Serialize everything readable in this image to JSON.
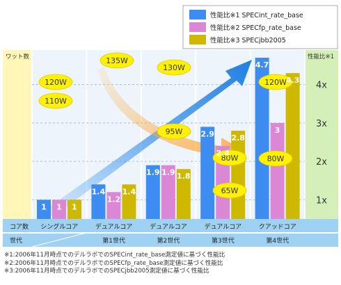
{
  "legend": [
    {
      "label": "性能比※1 SPECint_rate_base",
      "color": "#3d8cf2"
    },
    {
      "label": "性能比※2 SPECfp_rate_base",
      "color": "#dc86d6"
    },
    {
      "label": "性能比※3 SPECjbb2005",
      "color": "#cfb800"
    }
  ],
  "left_axis_title": "ワット数",
  "right_axis_title": "性能比※1",
  "row_labels": {
    "cores": "コア数",
    "generation": "世代"
  },
  "chart_data": {
    "type": "bar",
    "categories": [
      "シングルコア",
      "デュアルコア",
      "デュアルコア",
      "デュアルコア",
      "クアッドコア"
    ],
    "generations": [
      "",
      "第1世代",
      "第2世代",
      "第3世代",
      "第4世代"
    ],
    "series": [
      {
        "name": "SPECint_rate_base",
        "values": [
          1,
          1.4,
          1.9,
          2.9,
          4.7
        ],
        "labels": [
          "1",
          "1.4",
          "1.9",
          "2.9",
          "4.7"
        ]
      },
      {
        "name": "SPECfp_rate_base",
        "values": [
          1,
          1.2,
          1.9,
          2.4,
          3
        ],
        "labels": [
          "1",
          "1.2",
          "1.9",
          "2.4",
          "3"
        ]
      },
      {
        "name": "SPECjbb2005",
        "values": [
          1,
          1.4,
          1.8,
          2.8,
          4.3
        ],
        "labels": [
          "1",
          "1.4",
          "1.8",
          "2.8",
          "4.3"
        ]
      }
    ],
    "y_ticks": [
      "1x",
      "2x",
      "3x",
      "4x"
    ],
    "ylim": [
      0.5,
      4.9
    ],
    "wattage": [
      {
        "category_index": 0,
        "values": [
          "120W",
          "110W"
        ]
      },
      {
        "category_index": 1,
        "values": [
          "135W"
        ]
      },
      {
        "category_index": 2,
        "values": [
          "130W"
        ]
      },
      {
        "category_index": 2,
        "values": [
          "95W"
        ]
      },
      {
        "category_index": 3,
        "values": [
          "80W",
          "65W"
        ]
      },
      {
        "category_index": 4,
        "values": [
          "120W",
          "80W"
        ]
      }
    ]
  },
  "footnotes": [
    "※1:2006年11月時点でのデルラボでのSPECint_rate_base測定値に基づく性能比",
    "※2:2006年11月時点でのデルラボでのSPECfp_rate_base測定値に基づく性能比",
    "※3:2006年11月時点でのデルラボでのSPECjbb2005測定値に基づく性能比"
  ],
  "colors": {
    "left_band": "#fff6b8",
    "right_band": "#d4f0b8",
    "plot_bg": "#edf4fb",
    "header_row": "#9fd2f2",
    "arrow": "#2f8fe8",
    "pill": "#fff200"
  }
}
